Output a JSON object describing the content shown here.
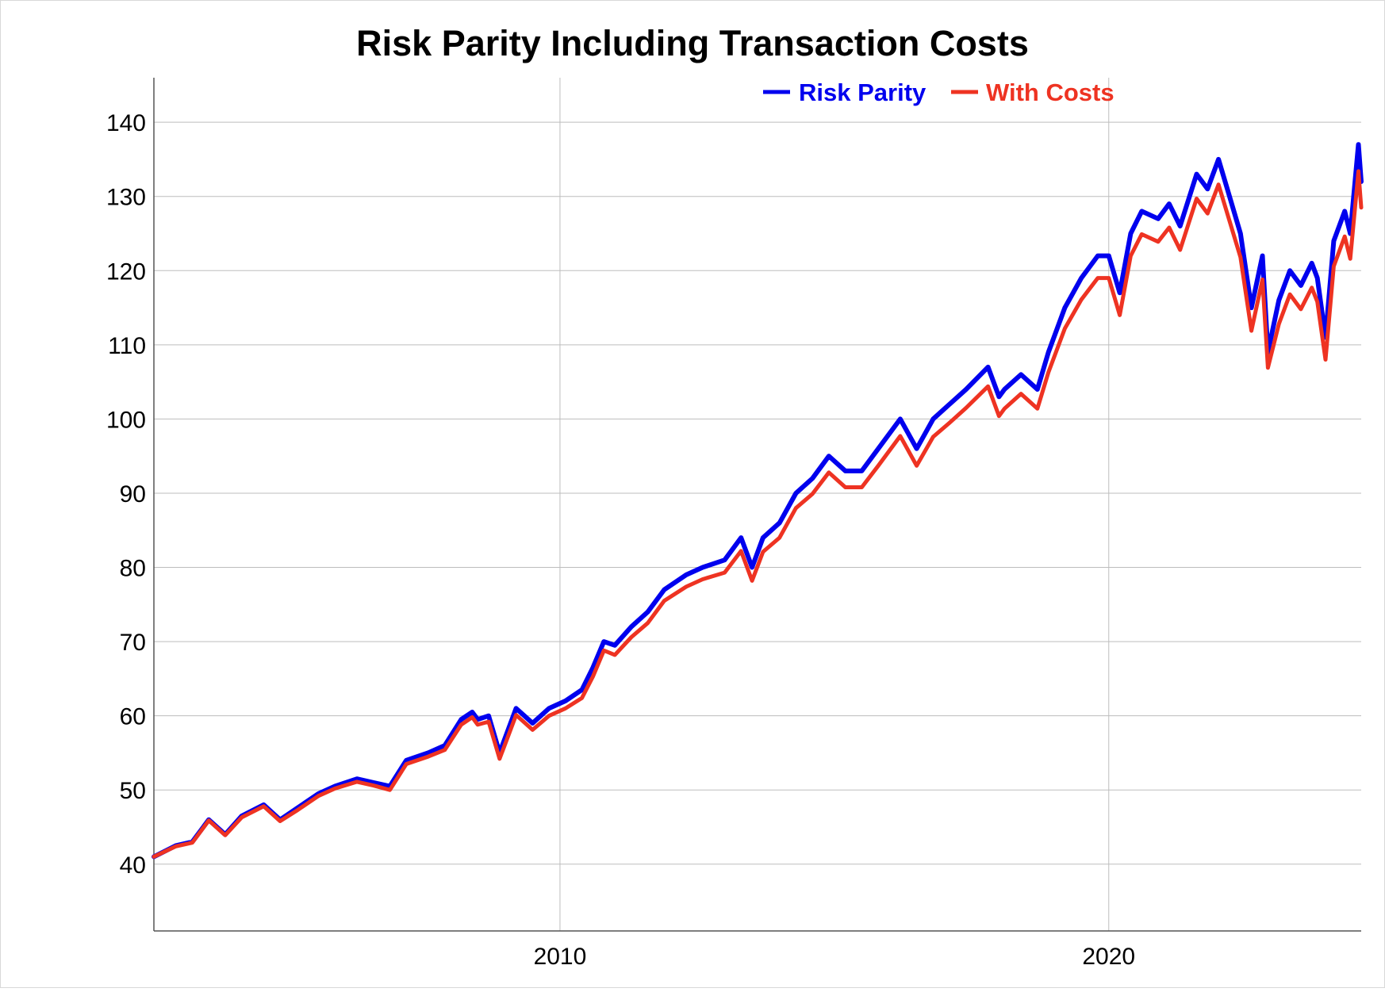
{
  "chart_data": {
    "type": "line",
    "title": "Risk Parity Including Transaction Costs",
    "xlabel": "",
    "ylabel": "",
    "xlim": [
      2002.6,
      2024.6
    ],
    "ylim": [
      31,
      146
    ],
    "x_ticks": [
      {
        "value": 2010,
        "label": "2010"
      },
      {
        "value": 2020,
        "label": "2020"
      }
    ],
    "y_ticks": [
      {
        "value": 40,
        "label": "40"
      },
      {
        "value": 50,
        "label": "50"
      },
      {
        "value": 60,
        "label": "60"
      },
      {
        "value": 70,
        "label": "70"
      },
      {
        "value": 80,
        "label": "80"
      },
      {
        "value": 90,
        "label": "90"
      },
      {
        "value": 100,
        "label": "100"
      },
      {
        "value": 110,
        "label": "110"
      },
      {
        "value": 120,
        "label": "120"
      },
      {
        "value": 130,
        "label": "130"
      },
      {
        "value": 140,
        "label": "140"
      }
    ],
    "grid": true,
    "legend": "top-right",
    "x": [
      2002.6,
      2003.0,
      2003.3,
      2003.6,
      2003.9,
      2004.2,
      2004.6,
      2004.9,
      2005.2,
      2005.6,
      2005.9,
      2006.3,
      2006.6,
      2006.9,
      2007.2,
      2007.6,
      2007.9,
      2008.2,
      2008.4,
      2008.5,
      2008.7,
      2008.9,
      2009.2,
      2009.5,
      2009.8,
      2010.1,
      2010.4,
      2010.6,
      2010.8,
      2011.0,
      2011.3,
      2011.6,
      2011.9,
      2012.3,
      2012.6,
      2013.0,
      2013.3,
      2013.5,
      2013.7,
      2014.0,
      2014.3,
      2014.6,
      2014.9,
      2015.2,
      2015.5,
      2015.8,
      2016.2,
      2016.5,
      2016.8,
      2017.1,
      2017.4,
      2017.8,
      2018.0,
      2018.1,
      2018.4,
      2018.7,
      2018.9,
      2019.2,
      2019.5,
      2019.8,
      2020.0,
      2020.2,
      2020.4,
      2020.6,
      2020.9,
      2021.1,
      2021.3,
      2021.6,
      2021.8,
      2022.0,
      2022.2,
      2022.4,
      2022.6,
      2022.8,
      2022.9,
      2023.1,
      2023.3,
      2023.5,
      2023.7,
      2023.8,
      2023.95,
      2024.1,
      2024.3,
      2024.4,
      2024.55,
      2024.6
    ],
    "series": [
      {
        "name": "Risk Parity",
        "color": "#0000ee",
        "values": [
          41,
          42.5,
          43,
          46,
          44,
          46.5,
          48,
          46,
          47.5,
          49.5,
          50.5,
          51.5,
          51,
          50.5,
          54,
          55,
          56,
          59.5,
          60.5,
          59.5,
          60,
          55,
          61,
          59,
          61,
          62,
          63.5,
          66.5,
          70,
          69.5,
          72,
          74,
          77,
          79,
          80,
          81,
          84,
          80,
          84,
          86,
          90,
          92,
          95,
          93,
          93,
          96,
          100,
          96,
          100,
          102,
          104,
          107,
          103,
          104,
          106,
          104,
          109,
          115,
          119,
          122,
          122,
          117,
          125,
          128,
          127,
          129,
          126,
          133,
          131,
          135,
          130,
          125,
          115,
          122,
          109,
          116,
          120,
          118,
          121,
          119,
          111,
          124,
          128,
          125,
          137,
          132
        ]
      },
      {
        "name": "With Costs",
        "color": "#ee3322",
        "values": [
          41,
          42.4,
          42.9,
          45.9,
          43.9,
          46.3,
          47.8,
          45.8,
          47.2,
          49.2,
          50.2,
          51.1,
          50.6,
          50,
          53.5,
          54.5,
          55.4,
          58.8,
          59.8,
          58.8,
          59.2,
          54.2,
          60.1,
          58.1,
          60,
          61,
          62.4,
          65.3,
          68.8,
          68.2,
          70.6,
          72.5,
          75.5,
          77.4,
          78.4,
          79.3,
          82.2,
          78.2,
          82.1,
          84,
          88,
          89.9,
          92.8,
          90.8,
          90.8,
          93.7,
          97.7,
          93.7,
          97.6,
          99.5,
          101.5,
          104.4,
          100.4,
          101.4,
          103.4,
          101.4,
          106.3,
          112.2,
          116.1,
          119,
          119,
          114,
          122,
          124.9,
          123.9,
          125.8,
          122.8,
          129.7,
          127.7,
          131.6,
          126.7,
          121.8,
          111.9,
          118.8,
          106.9,
          112.8,
          116.8,
          114.8,
          117.7,
          115.8,
          108,
          120.6,
          124.6,
          121.6,
          133.4,
          128.5
        ]
      }
    ]
  }
}
